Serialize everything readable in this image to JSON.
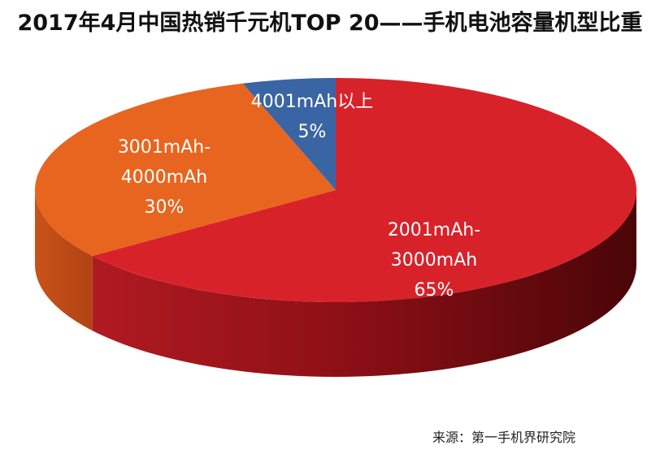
{
  "chart_data": {
    "type": "pie",
    "title": "2017年4月中国热销千元机TOP 20——手机电池容量机型比重",
    "source": "来源：第一手机界研究院",
    "slices": [
      {
        "name": "2001mAh-\n3000mAh",
        "value": 65,
        "label": "65%",
        "color": "#d8222a"
      },
      {
        "name": "3001mAh-\n4000mAh",
        "value": 30,
        "label": "30%",
        "color": "#e8651f"
      },
      {
        "name": "4001mAh以上",
        "value": 5,
        "label": "5%",
        "color": "#3a65a4"
      }
    ]
  }
}
